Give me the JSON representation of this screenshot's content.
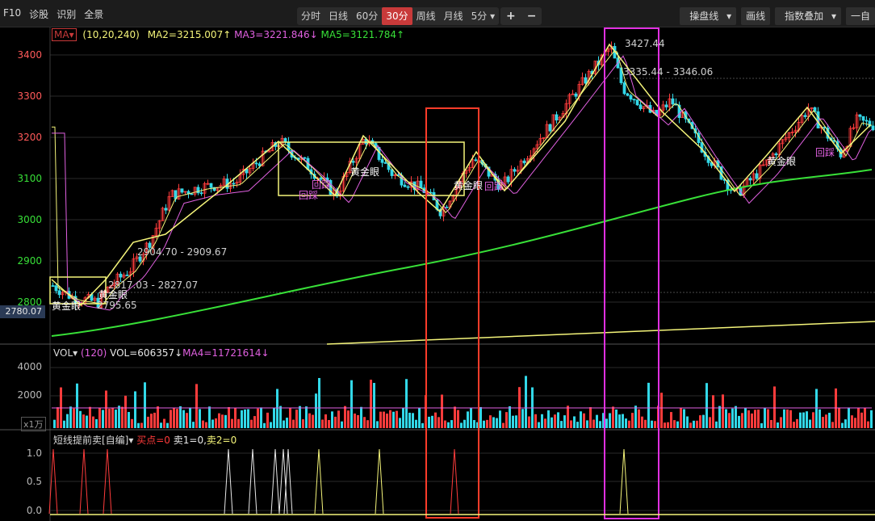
{
  "toolbar": {
    "left_items": [
      "F10",
      "诊股",
      "识别",
      "全景"
    ],
    "periods": [
      "分时",
      "日线",
      "60分",
      "30分",
      "周线",
      "月线",
      "5分"
    ],
    "active_period": "30分",
    "zoom_in": "+",
    "zoom_out": "−",
    "right_items": [
      "操盘线",
      "画线",
      "指数叠加",
      "一自"
    ]
  },
  "main_legend": {
    "ma_tag": "MA",
    "params": "(10,20,240)",
    "ma2": "MA2=3215.007↑",
    "ma3": "MA3=3221.846↓",
    "ma5": "MA5=3121.784↑"
  },
  "price_axis": [
    "3400",
    "3300",
    "3200",
    "3100",
    "3000",
    "2900",
    "2800"
  ],
  "current_price": "2780.07",
  "annotations": {
    "high": "3427.44",
    "range1": "3335.44 - 3346.06",
    "range2": "2904.70 - 2909.67",
    "range3": "2817.03 - 2827.07",
    "low": "2795.65",
    "golden_eye": "黄金眼",
    "huisu": "回踩"
  },
  "volume_legend": {
    "name": "VOL",
    "param": "(120)",
    "vol": "VOL=606357↓",
    "ma4": "MA4=11721614↓",
    "unit": "x1万",
    "axis": [
      "4000",
      "2000"
    ]
  },
  "indicator_legend": {
    "name": "短线提前卖[自编]",
    "buy": "买点=0",
    "sell1": "卖1=0,",
    "sell2": "卖2=0",
    "axis": [
      "1.0",
      "0.5",
      "0.0"
    ]
  },
  "colors": {
    "up": "#ff3c3c",
    "down": "#32d8e8",
    "ma_yellow": "#f5f57a",
    "ma_magenta": "#e060e0",
    "ma_green": "#38e038",
    "box_red": "#ff3c2a",
    "box_magenta": "#e030e0"
  }
}
